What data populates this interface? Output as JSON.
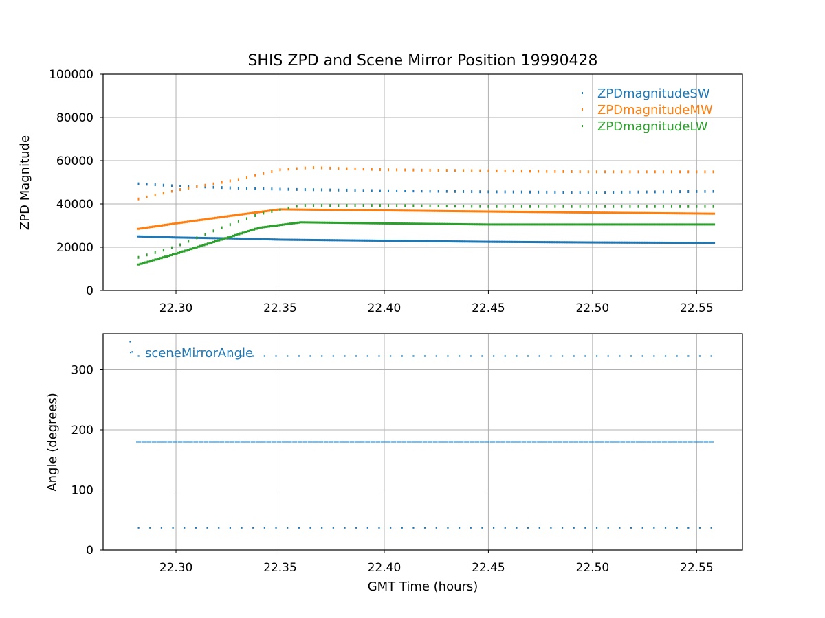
{
  "chart_data": [
    {
      "type": "scatter",
      "title": "SHIS ZPD and Scene Mirror Position 19990428",
      "xlabel": "",
      "ylabel": "ZPD Magnitude",
      "xlim": [
        22.265,
        22.572
      ],
      "ylim": [
        0,
        100000
      ],
      "xticks": [
        22.3,
        22.35,
        22.4,
        22.45,
        22.5,
        22.55
      ],
      "xtick_labels": [
        "22.30",
        "22.35",
        "22.40",
        "22.45",
        "22.50",
        "22.55"
      ],
      "yticks": [
        0,
        20000,
        40000,
        60000,
        80000,
        100000
      ],
      "ytick_labels": [
        "0",
        "20000",
        "40000",
        "60000",
        "80000",
        "100000"
      ],
      "grid": true,
      "legend_position": "top-right",
      "x_range": [
        22.282,
        22.558
      ],
      "series": [
        {
          "name": "ZPDmagnitudeSW",
          "color": "#1f77b4",
          "levels": [
            {
              "label": "upper",
              "x": [
                22.282,
                22.3,
                22.33,
                22.35,
                22.4,
                22.45,
                22.5,
                22.558
              ],
              "y": [
                49000,
                48000,
                47000,
                46500,
                45800,
                45300,
                45000,
                45500
              ]
            },
            {
              "label": "lower",
              "x": [
                22.282,
                22.3,
                22.33,
                22.35,
                22.4,
                22.45,
                22.5,
                22.558
              ],
              "y": [
                25000,
                24500,
                24000,
                23500,
                23000,
                22500,
                22200,
                22000
              ]
            }
          ]
        },
        {
          "name": "ZPDmagnitudeMW",
          "color": "#ff7f0e",
          "levels": [
            {
              "label": "upper",
              "x": [
                22.282,
                22.3,
                22.33,
                22.35,
                22.365,
                22.4,
                22.45,
                22.5,
                22.558
              ],
              "y": [
                42000,
                46000,
                51000,
                55500,
                56500,
                55500,
                55000,
                54500,
                54500
              ]
            },
            {
              "label": "lower",
              "x": [
                22.282,
                22.3,
                22.33,
                22.35,
                22.4,
                22.45,
                22.5,
                22.558
              ],
              "y": [
                28500,
                31000,
                35000,
                37500,
                37000,
                36500,
                36000,
                35500
              ]
            }
          ]
        },
        {
          "name": "ZPDmagnitudeLW",
          "color": "#2ca02c",
          "levels": [
            {
              "label": "upper",
              "x": [
                22.282,
                22.3,
                22.32,
                22.34,
                22.36,
                22.4,
                22.45,
                22.5,
                22.558
              ],
              "y": [
                15000,
                20000,
                28000,
                35000,
                39000,
                39000,
                38500,
                38500,
                38500
              ]
            },
            {
              "label": "lower",
              "x": [
                22.282,
                22.3,
                22.32,
                22.34,
                22.36,
                22.4,
                22.45,
                22.5,
                22.558
              ],
              "y": [
                12000,
                17000,
                23000,
                29000,
                31500,
                31000,
                30500,
                30500,
                30500
              ]
            }
          ]
        }
      ]
    },
    {
      "type": "scatter",
      "title": "",
      "xlabel": "GMT Time (hours)",
      "ylabel": "Angle (degrees)",
      "xlim": [
        22.265,
        22.572
      ],
      "ylim": [
        0,
        360
      ],
      "xticks": [
        22.3,
        22.35,
        22.4,
        22.45,
        22.5,
        22.55
      ],
      "xtick_labels": [
        "22.30",
        "22.35",
        "22.40",
        "22.45",
        "22.50",
        "22.55"
      ],
      "yticks": [
        0,
        100,
        200,
        300
      ],
      "ytick_labels": [
        "0",
        "100",
        "200",
        "300"
      ],
      "grid": true,
      "legend_position": "top-left",
      "series": [
        {
          "name": "sceneMirrorAngle",
          "color": "#1f77b4",
          "levels": [
            {
              "y": 323,
              "x_start": 22.282,
              "x_end": 22.558,
              "style": "sparse"
            },
            {
              "y": 180,
              "x_start": 22.282,
              "x_end": 22.558,
              "style": "dense"
            },
            {
              "y": 37,
              "x_start": 22.282,
              "x_end": 22.558,
              "style": "sparse"
            }
          ],
          "extra_points": [
            {
              "x": 22.278,
              "y": 347
            },
            {
              "x": 22.279,
              "y": 330
            }
          ]
        }
      ]
    }
  ]
}
